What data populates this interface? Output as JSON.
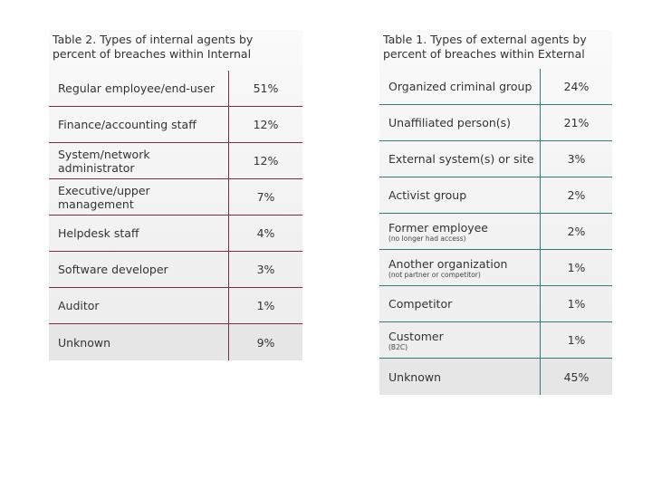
{
  "tables": [
    {
      "title": "Table 2. Types of internal agents by percent of breaches within Internal",
      "rows": [
        {
          "label": "Regular employee/end-user",
          "value": "51%"
        },
        {
          "label": "Finance/accounting staff",
          "value": "12%"
        },
        {
          "label": "System/network administrator",
          "value": "12%"
        },
        {
          "label": "Executive/upper management",
          "value": "7%"
        },
        {
          "label": "Helpdesk staff",
          "value": "4%"
        },
        {
          "label": "Software developer",
          "value": "3%"
        },
        {
          "label": "Auditor",
          "value": "1%"
        },
        {
          "label": "Unknown",
          "value": "9%"
        }
      ]
    },
    {
      "title": "Table 1. Types of external agents by percent of breaches within External",
      "rows": [
        {
          "label": "Organized criminal group",
          "value": "24%"
        },
        {
          "label": "Unaffiliated person(s)",
          "value": "21%"
        },
        {
          "label": "External system(s) or site",
          "value": "3%"
        },
        {
          "label": "Activist group",
          "value": "2%"
        },
        {
          "label": "Former employee",
          "note": "(no longer had access)",
          "value": "2%"
        },
        {
          "label": "Another organization",
          "note": "(not partner or competitor)",
          "value": "1%"
        },
        {
          "label": "Competitor",
          "value": "1%"
        },
        {
          "label": "Customer",
          "note": "(B2C)",
          "value": "1%"
        },
        {
          "label": "Unknown",
          "value": "45%"
        }
      ]
    }
  ]
}
